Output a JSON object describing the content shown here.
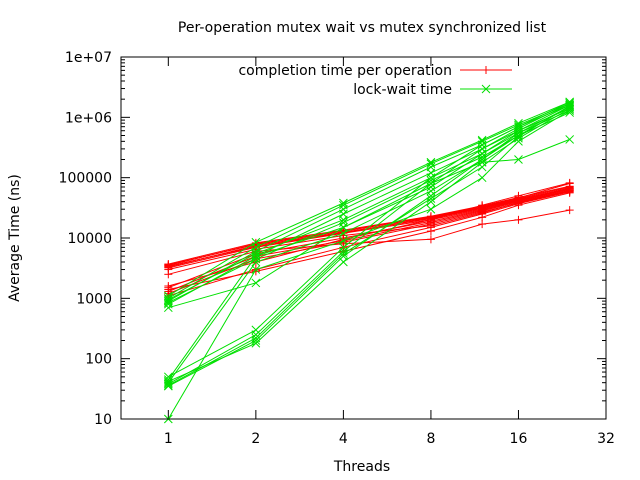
{
  "chart_data": {
    "type": "line",
    "title": "Per-operation mutex wait vs mutex synchronized list",
    "xlabel": "Threads",
    "ylabel": "Average Time (ns)",
    "x_scale": "log2",
    "y_scale": "log10",
    "xlim": [
      0.6875,
      32
    ],
    "ylim": [
      10,
      10000000
    ],
    "x_ticks": [
      1,
      2,
      4,
      8,
      16,
      32
    ],
    "x_tick_labels": [
      "1",
      "2",
      "4",
      "8",
      "16",
      "32"
    ],
    "y_ticks": [
      10,
      100,
      1000,
      10000,
      100000,
      1000000,
      10000000
    ],
    "y_tick_labels": [
      "10",
      "100",
      "1000",
      "10000",
      "100000",
      "1e+06",
      "1e+07"
    ],
    "legend_position": "top-center",
    "series": [
      {
        "name": "completion time per operation",
        "color": "#ff0000",
        "marker": "plus",
        "runs": [
          {
            "x": [
              1,
              2,
              4,
              8,
              12,
              16,
              24
            ],
            "y": [
              3500,
              8000,
              13000,
              22000,
              32000,
              45000,
              70000
            ]
          },
          {
            "x": [
              1,
              2,
              4,
              8,
              12,
              16,
              24
            ],
            "y": [
              3300,
              7500,
              12500,
              21000,
              31000,
              43000,
              68000
            ]
          },
          {
            "x": [
              1,
              2,
              4,
              8,
              12,
              16,
              24
            ],
            "y": [
              3700,
              8300,
              13500,
              23000,
              34000,
              47000,
              72000
            ]
          },
          {
            "x": [
              1,
              2,
              4,
              8,
              12,
              16,
              24
            ],
            "y": [
              3200,
              7000,
              12000,
              20000,
              30000,
              42000,
              65000
            ]
          },
          {
            "x": [
              1,
              2,
              4,
              8,
              12,
              16,
              24
            ],
            "y": [
              3600,
              7800,
              13000,
              22500,
              33000,
              46000,
              80000
            ]
          },
          {
            "x": [
              1,
              2,
              4,
              8,
              12,
              16,
              24
            ],
            "y": [
              3400,
              7200,
              12200,
              21500,
              31500,
              44000,
              66000
            ]
          },
          {
            "x": [
              1,
              2,
              4,
              8,
              12,
              16,
              24
            ],
            "y": [
              1300,
              5000,
              9000,
              18000,
              28000,
              40000,
              62000
            ]
          },
          {
            "x": [
              1,
              2,
              4,
              8,
              12,
              16,
              24
            ],
            "y": [
              1200,
              4500,
              8500,
              17000,
              27000,
              38000,
              60000
            ]
          },
          {
            "x": [
              1,
              2,
              4,
              8,
              12,
              16,
              24
            ],
            "y": [
              1500,
              5500,
              10000,
              19000,
              29000,
              41000,
              64000
            ]
          },
          {
            "x": [
              1,
              2,
              4,
              8,
              12,
              16,
              24
            ],
            "y": [
              1100,
              3000,
              7000,
              15000,
              25000,
              37000,
              58000
            ]
          },
          {
            "x": [
              1,
              2,
              4,
              8,
              12,
              16,
              24
            ],
            "y": [
              1400,
              2800,
              6000,
              13000,
              22000,
              35000,
              56000
            ]
          },
          {
            "x": [
              1,
              2,
              4,
              8,
              12,
              16,
              24
            ],
            "y": [
              3000,
              6500,
              11000,
              16000,
              26000,
              39000,
              61000
            ]
          },
          {
            "x": [
              1,
              2,
              4,
              8,
              12,
              16,
              24
            ],
            "y": [
              2500,
              6000,
              8000,
              9500,
              17000,
              20000,
              29000
            ]
          },
          {
            "x": [
              1,
              2,
              4,
              8,
              12,
              16,
              24
            ],
            "y": [
              1600,
              4000,
              9500,
              20000,
              35000,
              50000,
              82000
            ]
          }
        ]
      },
      {
        "name": "lock-wait time",
        "color": "#00e000",
        "marker": "cross",
        "runs": [
          {
            "x": [
              1,
              2,
              4,
              8,
              12,
              16,
              24
            ],
            "y": [
              900,
              6000,
              30000,
              150000,
              350000,
              700000,
              1600000
            ]
          },
          {
            "x": [
              1,
              2,
              4,
              8,
              12,
              16,
              24
            ],
            "y": [
              1000,
              7000,
              35000,
              170000,
              400000,
              750000,
              1700000
            ]
          },
          {
            "x": [
              1,
              2,
              4,
              8,
              12,
              16,
              24
            ],
            "y": [
              800,
              5000,
              25000,
              120000,
              300000,
              600000,
              1400000
            ]
          },
          {
            "x": [
              1,
              2,
              4,
              8,
              12,
              16,
              24
            ],
            "y": [
              1100,
              8500,
              38000,
              180000,
              420000,
              800000,
              1800000
            ]
          },
          {
            "x": [
              1,
              2,
              4,
              8,
              12,
              16,
              24
            ],
            "y": [
              950,
              5500,
              20000,
              100000,
              250000,
              550000,
              1300000
            ]
          },
          {
            "x": [
              1,
              2,
              4,
              8,
              12,
              16,
              24
            ],
            "y": [
              700,
              1800,
              15000,
              80000,
              180000,
              200000,
              430000
            ]
          },
          {
            "x": [
              1,
              2,
              4,
              8,
              12,
              16,
              24
            ],
            "y": [
              850,
              4500,
              18000,
              90000,
              220000,
              500000,
              1200000
            ]
          },
          {
            "x": [
              1,
              2,
              4,
              8,
              12,
              16,
              24
            ],
            "y": [
              40,
              4000,
              12000,
              60000,
              200000,
              500000,
              1500000
            ]
          },
          {
            "x": [
              1,
              2,
              4,
              8,
              12,
              16,
              24
            ],
            "y": [
              45,
              5000,
              15000,
              70000,
              250000,
              600000,
              1600000
            ]
          },
          {
            "x": [
              1,
              2,
              4,
              8,
              12,
              16,
              24
            ],
            "y": [
              35,
              200,
              5000,
              50000,
              200000,
              550000,
              1500000
            ]
          },
          {
            "x": [
              1,
              2,
              4,
              8,
              12,
              16,
              24
            ],
            "y": [
              38,
              250,
              6000,
              80000,
              300000,
              650000,
              1700000
            ]
          },
          {
            "x": [
              1,
              2,
              4,
              8,
              12,
              16,
              24
            ],
            "y": [
              42,
              180,
              4000,
              40000,
              180000,
              450000,
              1400000
            ]
          },
          {
            "x": [
              1,
              2,
              4,
              8,
              12,
              16,
              24
            ],
            "y": [
              50,
              300,
              7000,
              100000,
              350000,
              700000,
              1800000
            ]
          },
          {
            "x": [
              1,
              2,
              4,
              8,
              12,
              16,
              24
            ],
            "y": [
              36,
              220,
              5500,
              45000,
              150000,
              480000,
              1550000
            ]
          },
          {
            "x": [
              1,
              2,
              4,
              8,
              12,
              16,
              24
            ],
            "y": [
              10,
              3000,
              9000,
              30000,
              100000,
              400000,
              1300000
            ]
          }
        ]
      }
    ]
  }
}
